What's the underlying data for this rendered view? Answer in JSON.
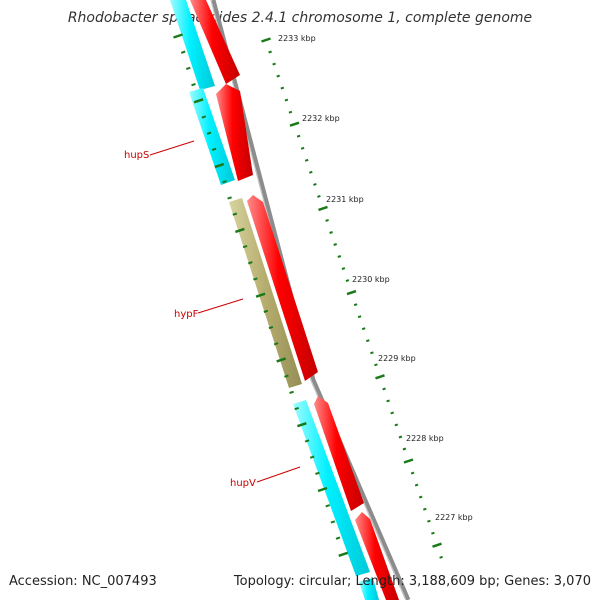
{
  "header": {
    "title": "Rhodobacter sphaeroides 2.4.1 chromosome 1, complete genome"
  },
  "footer": {
    "accession": "Accession: NC_007493",
    "topology": "Topology: circular; Length: 3,188,609 bp; Genes: 3,070"
  },
  "genome_map": {
    "colors": {
      "backbone": "#8c8c8c",
      "cds_forward": "#ff0000",
      "cds_reverse": "#00ffff",
      "other_feature": "#b5ad6e",
      "tick": "#1a7a1a",
      "gene_label": "#cc0000",
      "tick_label": "#222222"
    },
    "scale_labels": [
      "2233 kbp",
      "2232 kbp",
      "2231 kbp",
      "2230 kbp",
      "2229 kbp",
      "2228 kbp",
      "2227 kbp"
    ],
    "gene_labels": [
      "hupS",
      "hypF",
      "hupV"
    ]
  }
}
